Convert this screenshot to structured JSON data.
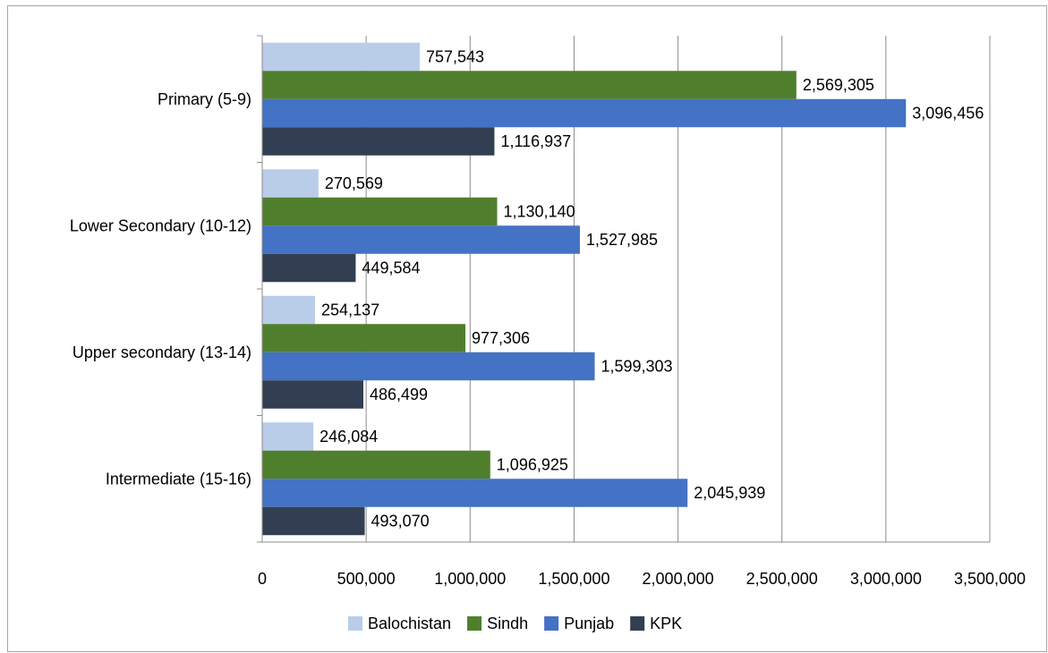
{
  "chart_data": {
    "type": "bar",
    "orientation": "horizontal",
    "categories": [
      "Primary (5-9)",
      "Lower Secondary (10-12)",
      "Upper secondary (13-14)",
      "Intermediate (15-16)"
    ],
    "series": [
      {
        "name": "Balochistan",
        "color": "#b9cde9",
        "values": [
          757543,
          270569,
          254137,
          246084
        ],
        "labels": [
          "757,543",
          "270,569",
          "254,137",
          "246,084"
        ]
      },
      {
        "name": "Sindh",
        "color": "#4f7f2d",
        "values": [
          2569305,
          1130140,
          977306,
          1096925
        ],
        "labels": [
          "2,569,305",
          "1,130,140",
          "977,306",
          "1,096,925"
        ]
      },
      {
        "name": "Punjab",
        "color": "#4472c4",
        "values": [
          3096456,
          1527985,
          1599303,
          2045939
        ],
        "labels": [
          "3,096,456",
          "1,527,985",
          "1,599,303",
          "2,045,939"
        ]
      },
      {
        "name": "KPK",
        "color": "#323f53",
        "values": [
          1116937,
          449584,
          486499,
          493070
        ],
        "labels": [
          "1,116,937",
          "449,584",
          "486,499",
          "493,070"
        ]
      }
    ],
    "x_ticks": [
      0,
      500000,
      1000000,
      1500000,
      2000000,
      2500000,
      3000000,
      3500000
    ],
    "x_tick_labels": [
      "0",
      "500,000",
      "1,000,000",
      "1,500,000",
      "2,000,000",
      "2,500,000",
      "3,000,000",
      "3,500,000"
    ],
    "xlim": [
      0,
      3500000
    ],
    "grid": "vertical",
    "legend_position": "bottom",
    "title": "",
    "xlabel": "",
    "ylabel": ""
  }
}
